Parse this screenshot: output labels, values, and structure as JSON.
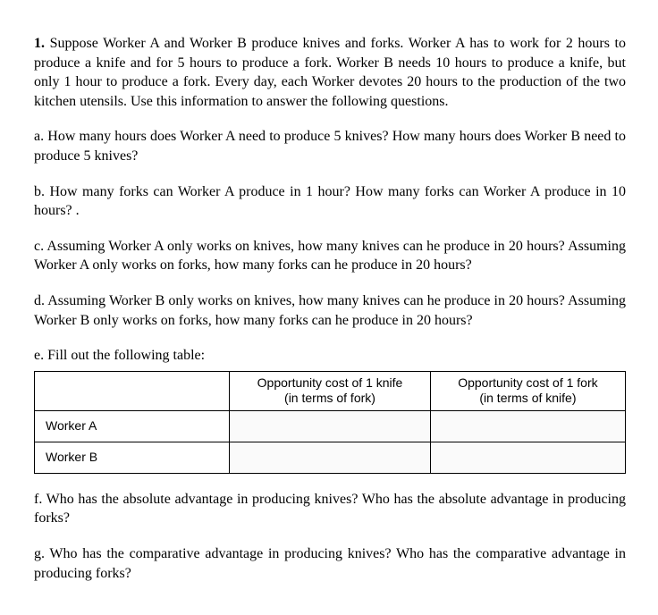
{
  "intro": {
    "number": "1.",
    "text": " Suppose Worker A and Worker B  produce knives and forks. Worker A has to work for 2 hours to produce a knife and for 5 hours to produce a fork. Worker B needs 10 hours to produce a knife, but only 1 hour to produce a fork. Every day, each Worker devotes 20 hours to the production of the two kitchen utensils. Use this information to answer the following questions."
  },
  "q_a": "a. How many hours does Worker A need to produce 5 knives? How many hours does Worker B need to produce 5 knives?",
  "q_b": "b. How many forks can Worker A produce in 1 hour? How many forks can Worker A produce in 10 hours? .",
  "q_c": "c. Assuming Worker A only works on knives, how many knives can he produce in 20 hours? Assuming Worker A only works on forks, how many forks can he produce in 20 hours?",
  "q_d": "d. Assuming Worker B only works on knives, how many knives can he produce in 20 hours? Assuming Worker B only works on forks, how many forks can he produce in 20 hours?",
  "q_e_intro": "e. Fill out the following table:",
  "table": {
    "header_knife_l1": "Opportunity cost of 1 knife",
    "header_knife_l2": "(in terms of fork)",
    "header_fork_l1": "Opportunity cost of 1 fork",
    "header_fork_l2": "(in terms of knife)",
    "row1_label": "Worker A",
    "row1_knife": "",
    "row1_fork": "",
    "row2_label": "Worker B",
    "row2_knife": "",
    "row2_fork": ""
  },
  "q_f": "f. Who has the absolute advantage in producing knives? Who has the absolute advantage in producing forks?",
  "q_g": "g. Who has the comparative advantage in producing knives? Who has the comparative advantage in producing forks?"
}
